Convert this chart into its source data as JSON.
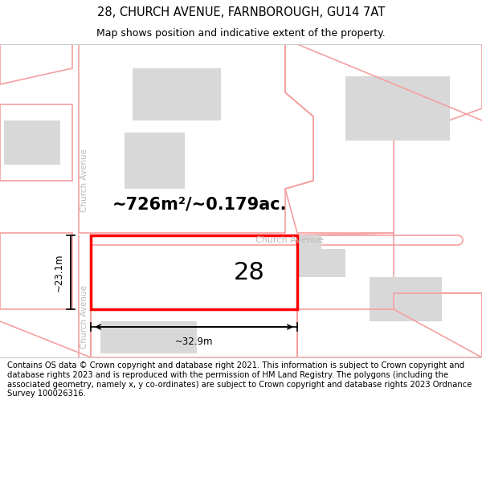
{
  "title": "28, CHURCH AVENUE, FARNBOROUGH, GU14 7AT",
  "subtitle": "Map shows position and indicative extent of the property.",
  "footer_text": "Contains OS data © Crown copyright and database right 2021. This information is subject to Crown copyright and database rights 2023 and is reproduced with the permission of HM Land Registry. The polygons (including the associated geometry, namely x, y co-ordinates) are subject to Crown copyright and database rights 2023 Ordnance Survey 100026316.",
  "bg_color": "#ffffff",
  "map_bg_color": "#ffffff",
  "title_fontsize": 10.5,
  "subtitle_fontsize": 9,
  "footer_fontsize": 7.2,
  "area_text": "~726m²/~0.179ac.",
  "area_fontsize": 15,
  "label_28": "28",
  "dim_width": "~32.9m",
  "dim_height": "~23.1m",
  "road_label": "Church Avenue",
  "street_label": "Church Avenue",
  "highlight_color": "#ff0000",
  "building_fill": "#d8d8d8",
  "parcel_line_color": "#f5a0a0",
  "dim_color": "#000000",
  "text_color": "#000000",
  "street_label_color": "#c0b8b8"
}
